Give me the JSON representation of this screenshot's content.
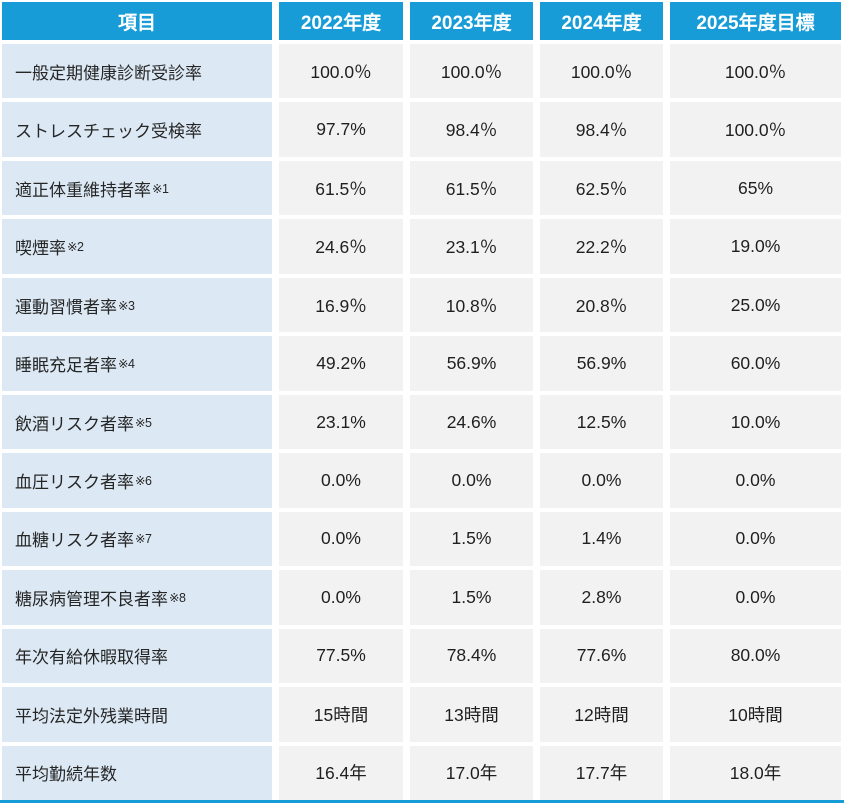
{
  "colors": {
    "header_bg": "#189CD7",
    "label_bg": "#DCE9F5",
    "cell_bg": "#F2F2F2",
    "header_text": "#FFFFFF",
    "body_text": "#262626"
  },
  "chart_data": {
    "type": "table",
    "title": "",
    "columns": [
      "項目",
      "2022年度",
      "2023年度",
      "2024年度",
      "2025年度目標"
    ],
    "rows": [
      {
        "label": "一般定期健康診断受診率",
        "note": "",
        "values": [
          "100.0％",
          "100.0％",
          "100.0％",
          "100.0％"
        ]
      },
      {
        "label": "ストレスチェック受検率",
        "note": "",
        "values": [
          "97.7%",
          "98.4％",
          "98.4％",
          "100.0％"
        ]
      },
      {
        "label": "適正体重維持者率",
        "note": "※1",
        "values": [
          "61.5％",
          "61.5％",
          "62.5％",
          "65%"
        ]
      },
      {
        "label": "喫煙率",
        "note": "※2",
        "values": [
          "24.6％",
          "23.1％",
          "22.2％",
          "19.0%"
        ]
      },
      {
        "label": "運動習慣者率",
        "note": "※3",
        "values": [
          "16.9％",
          "10.8％",
          "20.8％",
          "25.0%"
        ]
      },
      {
        "label": "睡眠充足者率",
        "note": "※4",
        "values": [
          "49.2%",
          "56.9%",
          "56.9%",
          "60.0%"
        ]
      },
      {
        "label": "飲酒リスク者率",
        "note": "※5",
        "values": [
          "23.1%",
          "24.6%",
          "12.5%",
          "10.0%"
        ]
      },
      {
        "label": "血圧リスク者率",
        "note": "※6",
        "values": [
          "0.0%",
          "0.0%",
          "0.0%",
          "0.0%"
        ]
      },
      {
        "label": "血糖リスク者率",
        "note": "※7",
        "values": [
          "0.0%",
          "1.5%",
          "1.4%",
          "0.0%"
        ]
      },
      {
        "label": "糖尿病管理不良者率",
        "note": "※8",
        "values": [
          "0.0%",
          "1.5%",
          "2.8%",
          "0.0%"
        ]
      },
      {
        "label": "年次有給休暇取得率",
        "note": "",
        "values": [
          "77.5%",
          "78.4%",
          "77.6%",
          "80.0%"
        ]
      },
      {
        "label": "平均法定外残業時間",
        "note": "",
        "values": [
          "15時間",
          "13時間",
          "12時間",
          "10時間"
        ]
      },
      {
        "label": "平均勤続年数",
        "note": "",
        "values": [
          "16.4年",
          "17.0年",
          "17.7年",
          "18.0年"
        ]
      }
    ]
  }
}
